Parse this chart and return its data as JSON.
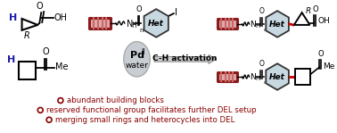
{
  "bg_color": "#ffffff",
  "bullet_color": "#8B0000",
  "bullet_texts": [
    "abundant building blocks",
    "reserved functional group facilitates further DEL setup",
    "merging small rings and heterocycles into DEL"
  ],
  "red_dark": "#8B1A1A",
  "bond_color": "#cc0000",
  "black": "#000000",
  "blue": "#1a1aaa",
  "het_bg": "#c8d8e0",
  "het_edge": "#333333",
  "arrow_gray": "#999999",
  "pd_gray": "#c8cdd4",
  "pd_edge": "#aaaaaa",
  "dna_rail": "#8B1A1A",
  "dna_rung": "#cc6666",
  "dna_fill": "#ddaaaa",
  "figsize": [
    3.78,
    1.49
  ],
  "dpi": 100
}
